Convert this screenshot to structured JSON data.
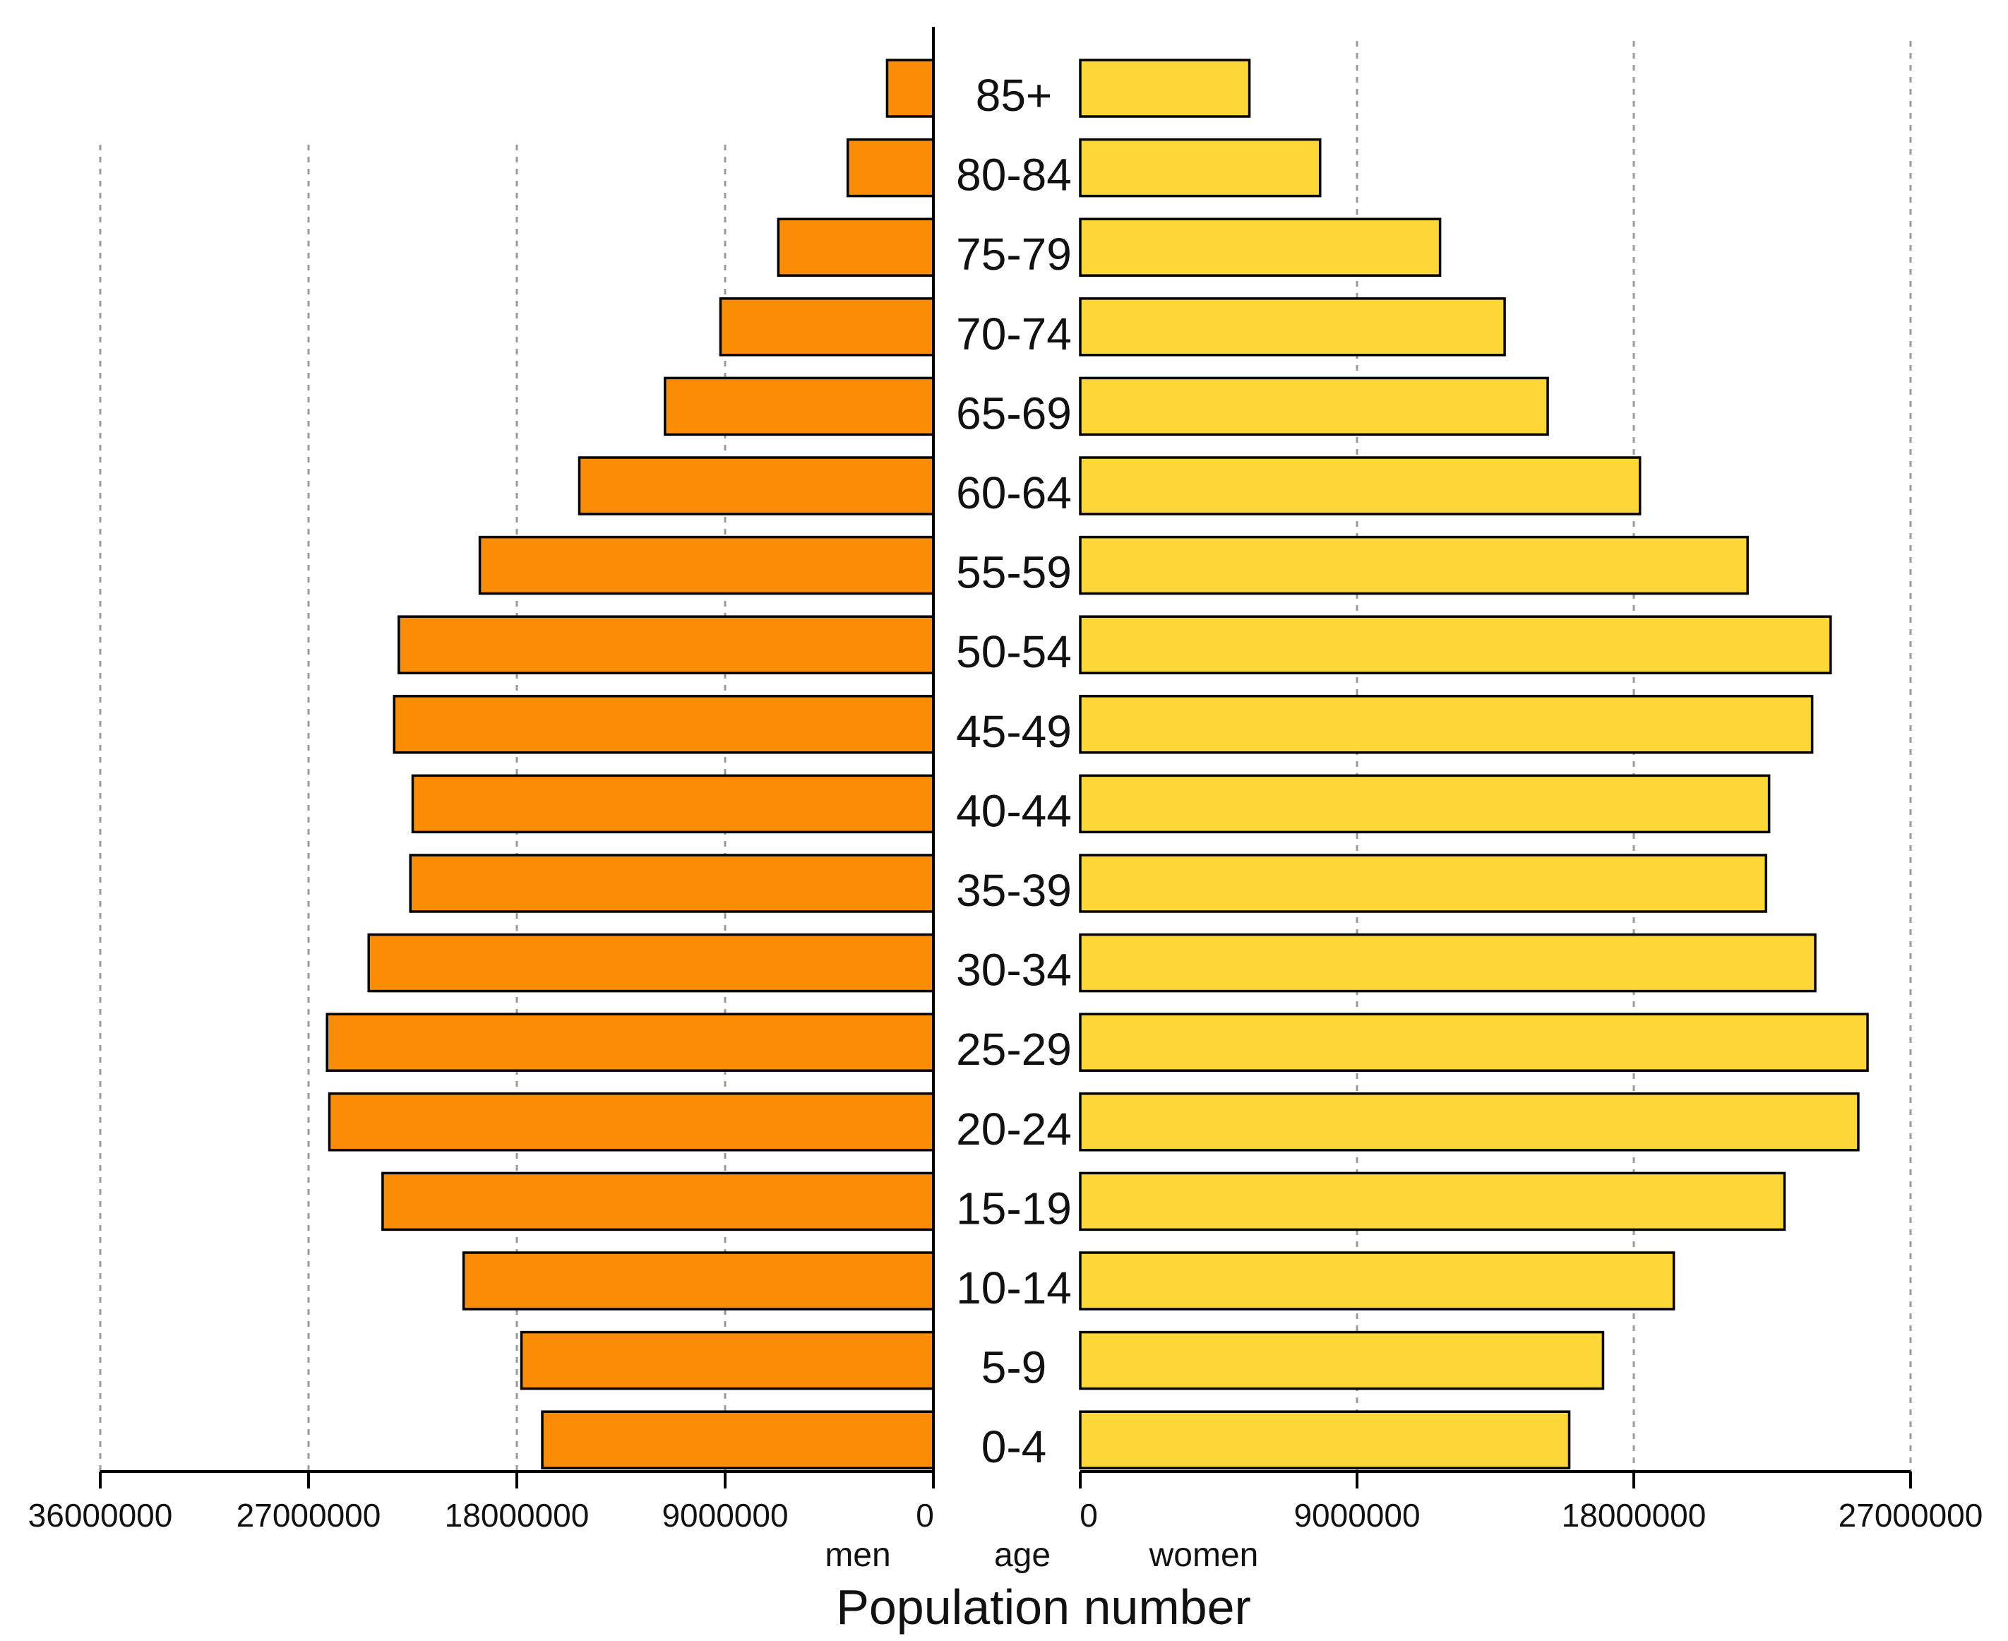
{
  "chart_data": {
    "type": "bar",
    "orientation": "horizontal",
    "subtype": "population-pyramid",
    "categories": [
      "85+",
      "80-84",
      "75-79",
      "70-74",
      "65-69",
      "60-64",
      "55-59",
      "50-54",
      "45-49",
      "40-44",
      "35-39",
      "30-34",
      "25-29",
      "20-24",
      "15-19",
      "10-14",
      "5-9",
      "0-4"
    ],
    "series": [
      {
        "name": "men",
        "side": "left",
        "color": "#fb8c06",
        "values": [
          2000000,
          3700000,
          6700000,
          9200000,
          11600000,
          15300000,
          19600000,
          23100000,
          23300000,
          22500000,
          22600000,
          24400000,
          26200000,
          26100000,
          23800000,
          20300000,
          17800000,
          16900000
        ]
      },
      {
        "name": "women",
        "side": "right",
        "color": "#fdd637",
        "values": [
          5500000,
          7800000,
          11700000,
          13800000,
          15200000,
          18200000,
          21700000,
          24400000,
          23800000,
          22400000,
          22300000,
          23900000,
          25600000,
          25300000,
          22900000,
          19300000,
          17000000,
          15900000
        ]
      }
    ],
    "axes": {
      "men": {
        "ticks": [
          "36000000",
          "27000000",
          "18000000",
          "9000000",
          "0"
        ],
        "range": [
          0,
          36000000
        ]
      },
      "women": {
        "ticks": [
          "0",
          "9000000",
          "18000000",
          "27000000"
        ],
        "range": [
          0,
          27000000
        ]
      }
    },
    "grid": true,
    "labels": {
      "left": "men",
      "center": "age",
      "right": "women"
    },
    "xlabel": "Population number",
    "title": ""
  }
}
